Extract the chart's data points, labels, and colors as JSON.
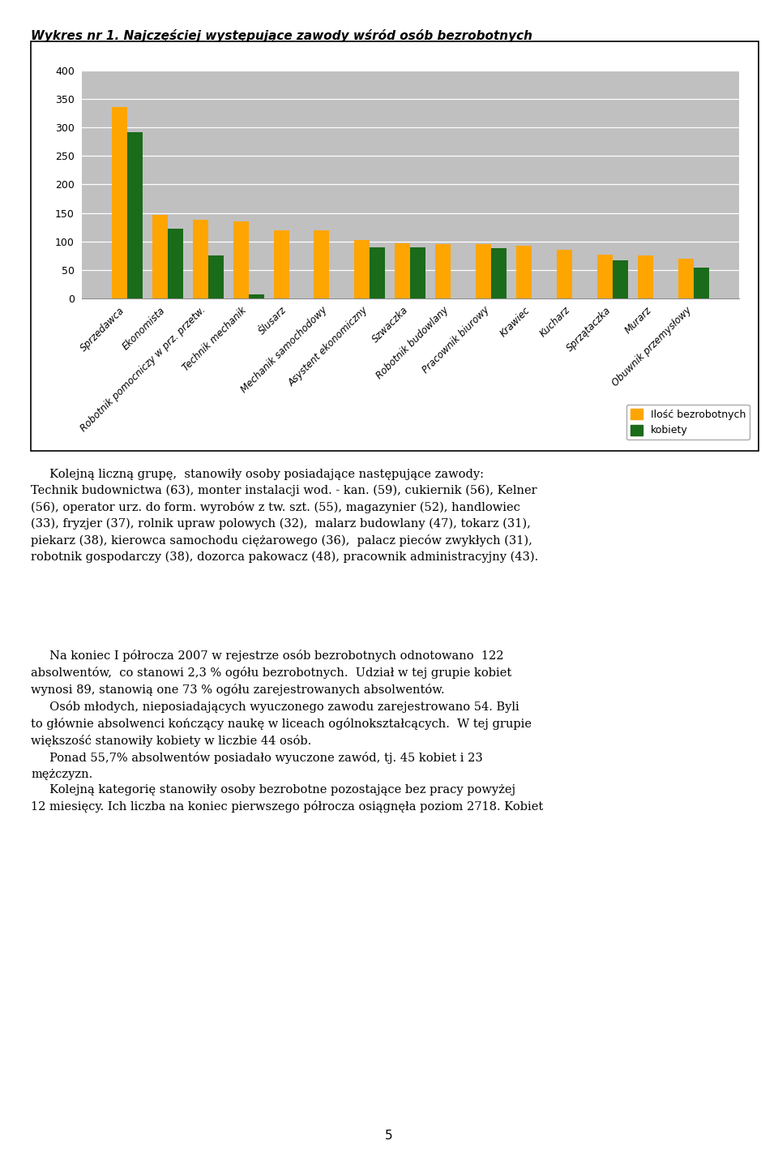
{
  "title": "Wykres nr 1. Najczęściej występujące zawody wśród osób bezrobotnych",
  "categories": [
    "Sprzedawca",
    "Ekonomista",
    "Robotnik pomocniczy w prz. przetw.",
    "Technik mechanik",
    "Ślusarz",
    "Mechanik samochodowy",
    "Asystent ekonomiczny",
    "Szwaczka",
    "Robotnik budowlany",
    "Pracownik biurowy",
    "Krawiec",
    "Kucharz",
    "Sprzątaczka",
    "Murarz",
    "Obuwnik przemysłowy"
  ],
  "values_total": [
    335,
    147,
    138,
    135,
    120,
    120,
    103,
    97,
    95,
    95,
    93,
    85,
    77,
    75,
    70
  ],
  "values_women": [
    291,
    123,
    76,
    7,
    0,
    0,
    90,
    90,
    0,
    88,
    0,
    0,
    67,
    0,
    55
  ],
  "color_total": "#FFA500",
  "color_women": "#1a6b1a",
  "ylim": [
    0,
    400
  ],
  "yticks": [
    0,
    50,
    100,
    150,
    200,
    250,
    300,
    350,
    400
  ],
  "legend_total": "Ilość bezrobotnych",
  "legend_women": "kobiety",
  "plot_bg": "#c0c0c0",
  "paragraph1": "     Kolejną liczną grupę,  stanowiły osoby posiadające następujące zawody:\nTechnik budownictwa (63), monter instalacji wod. - kan. (59), cukiernik (56), Kelner\n(56), operator urz. do form. wyrobów z tw. szt. (55), magazynier (52), handlowiec\n(33), fryzjer (37), rolnik upraw polowych (32),  malarz budowlany (47), tokarz (31),\npiekarz (38), kierowca samochodu ciężarowego (36),  palacz pieców zwykłych (31),\nrobotnik gospodarczy (38), dozorca pakowacz (48), pracownik administracyjny (43).",
  "paragraph2": "     Na koniec I półrocza 2007 w rejestrze osób bezrobotnych odnotowano  122\nabsolwentów,  co stanowi 2,3 % ogółu bezrobotnych.  Udział w tej grupie kobiet\nwynosi 89, stanowią one 73 % ogółu zarejestrowanych absolwentów.\n     Osób młodych, nieposiadających wyuczonego zawodu zarejestrowano 54. Byli\nto głównie absolwenci kończący naukę w liceach ogólnokształcących.  W tej grupie\nwiększość stanowiły kobiety w liczbie 44 osób.\n     Ponad 55,7% absolwentów posiadało wyuczone zawód, tj. 45 kobiet i 23\nmężczyzn.\n     Kolejną kategorię stanowiły osoby bezrobotne pozostające bez pracy powyżej\n12 miesięcy. Ich liczba na koniec pierwszego półrocza osiągnęła poziom 2718. Kobiet",
  "page_number": "5"
}
